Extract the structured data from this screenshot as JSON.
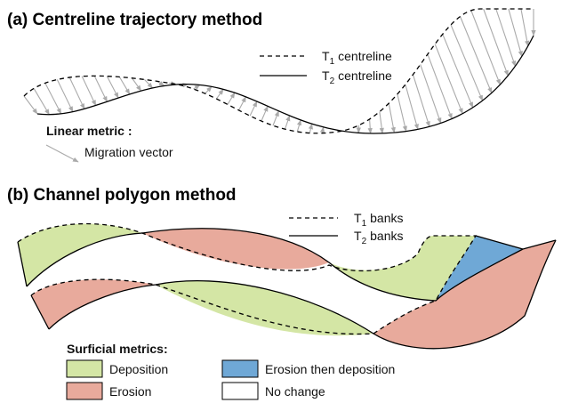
{
  "panel_a": {
    "title": "(a) Centreline trajectory method",
    "legend": [
      {
        "symbol": "T",
        "subscript": "1",
        "label": "centreline"
      },
      {
        "symbol": "T",
        "subscript": "2",
        "label": "centreline"
      }
    ],
    "metric_title": "Linear metric :",
    "metric_label": "Migration vector"
  },
  "panel_b": {
    "title": "(b) Channel polygon method",
    "legend": [
      {
        "symbol": "T",
        "subscript": "1",
        "label": "banks"
      },
      {
        "symbol": "T",
        "subscript": "2",
        "label": "banks"
      }
    ],
    "metric_title": "Surficial metrics:",
    "metrics": [
      "Deposition",
      "Erosion",
      "Erosion then deposition",
      "No change"
    ]
  }
}
